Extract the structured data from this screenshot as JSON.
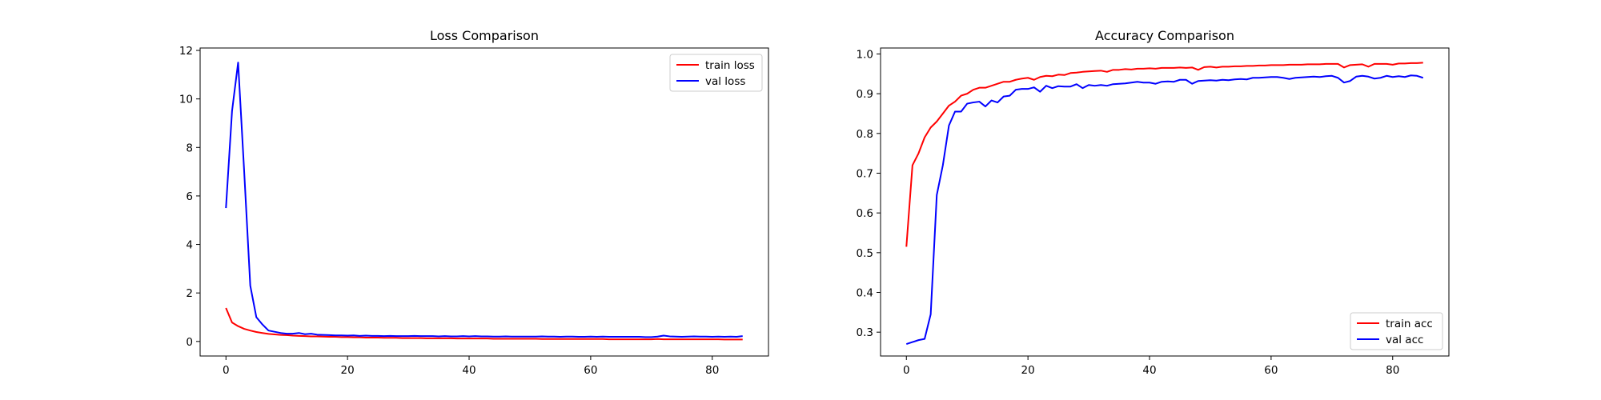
{
  "chart_data": [
    {
      "type": "line",
      "title": "Loss Comparison",
      "xlabel": "",
      "ylabel": "",
      "xlim": [
        -4.25,
        89.25
      ],
      "ylim": [
        -0.6,
        12.1
      ],
      "xticks": [
        0,
        20,
        40,
        60,
        80
      ],
      "yticks": [
        0,
        2,
        4,
        6,
        8,
        10,
        12
      ],
      "grid": false,
      "legend_position": "top-right",
      "series": [
        {
          "name": "train loss",
          "color": "#ff0000",
          "x": [
            0,
            1,
            2,
            3,
            4,
            5,
            6,
            7,
            8,
            9,
            10,
            11,
            12,
            13,
            14,
            15,
            16,
            17,
            18,
            19,
            20,
            21,
            22,
            23,
            24,
            25,
            26,
            27,
            28,
            29,
            30,
            31,
            32,
            33,
            34,
            35,
            36,
            37,
            38,
            39,
            40,
            41,
            42,
            43,
            44,
            45,
            46,
            47,
            48,
            49,
            50,
            51,
            52,
            53,
            54,
            55,
            56,
            57,
            58,
            59,
            60,
            61,
            62,
            63,
            64,
            65,
            66,
            67,
            68,
            69,
            70,
            71,
            72,
            73,
            74,
            75,
            76,
            77,
            78,
            79,
            80,
            81,
            82,
            83,
            84,
            85
          ],
          "y": [
            1.38,
            0.78,
            0.63,
            0.52,
            0.45,
            0.39,
            0.35,
            0.31,
            0.29,
            0.27,
            0.26,
            0.24,
            0.23,
            0.22,
            0.21,
            0.21,
            0.2,
            0.19,
            0.19,
            0.18,
            0.18,
            0.17,
            0.17,
            0.16,
            0.16,
            0.16,
            0.15,
            0.15,
            0.15,
            0.14,
            0.14,
            0.14,
            0.14,
            0.13,
            0.13,
            0.13,
            0.13,
            0.13,
            0.12,
            0.12,
            0.12,
            0.12,
            0.12,
            0.12,
            0.11,
            0.11,
            0.11,
            0.11,
            0.11,
            0.11,
            0.11,
            0.11,
            0.1,
            0.1,
            0.1,
            0.1,
            0.1,
            0.1,
            0.1,
            0.1,
            0.1,
            0.1,
            0.1,
            0.09,
            0.09,
            0.09,
            0.09,
            0.09,
            0.09,
            0.09,
            0.09,
            0.1,
            0.09,
            0.09,
            0.09,
            0.09,
            0.09,
            0.09,
            0.09,
            0.09,
            0.09,
            0.09,
            0.08,
            0.08,
            0.08,
            0.08
          ]
        },
        {
          "name": "val loss",
          "color": "#0000ff",
          "x": [
            0,
            1,
            2,
            3,
            4,
            5,
            6,
            7,
            8,
            9,
            10,
            11,
            12,
            13,
            14,
            15,
            16,
            17,
            18,
            19,
            20,
            21,
            22,
            23,
            24,
            25,
            26,
            27,
            28,
            29,
            30,
            31,
            32,
            33,
            34,
            35,
            36,
            37,
            38,
            39,
            40,
            41,
            42,
            43,
            44,
            45,
            46,
            47,
            48,
            49,
            50,
            51,
            52,
            53,
            54,
            55,
            56,
            57,
            58,
            59,
            60,
            61,
            62,
            63,
            64,
            65,
            66,
            67,
            68,
            69,
            70,
            71,
            72,
            73,
            74,
            75,
            76,
            77,
            78,
            79,
            80,
            81,
            82,
            83,
            84,
            85
          ],
          "y": [
            5.5,
            9.5,
            11.5,
            7.0,
            2.3,
            1.0,
            0.7,
            0.45,
            0.4,
            0.35,
            0.32,
            0.32,
            0.35,
            0.3,
            0.32,
            0.28,
            0.27,
            0.26,
            0.25,
            0.25,
            0.24,
            0.25,
            0.23,
            0.24,
            0.23,
            0.23,
            0.22,
            0.23,
            0.22,
            0.22,
            0.22,
            0.23,
            0.22,
            0.22,
            0.22,
            0.21,
            0.22,
            0.21,
            0.21,
            0.22,
            0.21,
            0.22,
            0.21,
            0.21,
            0.2,
            0.2,
            0.21,
            0.2,
            0.2,
            0.2,
            0.2,
            0.2,
            0.21,
            0.2,
            0.2,
            0.19,
            0.2,
            0.2,
            0.19,
            0.19,
            0.2,
            0.19,
            0.2,
            0.19,
            0.19,
            0.19,
            0.19,
            0.19,
            0.19,
            0.18,
            0.18,
            0.2,
            0.24,
            0.21,
            0.2,
            0.19,
            0.2,
            0.21,
            0.2,
            0.2,
            0.19,
            0.2,
            0.19,
            0.2,
            0.19,
            0.22
          ]
        }
      ]
    },
    {
      "type": "line",
      "title": "Accuracy Comparison",
      "xlabel": "",
      "ylabel": "",
      "xlim": [
        -4.25,
        89.25
      ],
      "ylim": [
        0.24,
        1.015
      ],
      "xticks": [
        0,
        20,
        40,
        60,
        80
      ],
      "yticks": [
        0.3,
        0.4,
        0.5,
        0.6,
        0.7,
        0.8,
        0.9,
        1.0
      ],
      "grid": false,
      "legend_position": "bottom-right",
      "series": [
        {
          "name": "train acc",
          "color": "#ff0000",
          "x": [
            0,
            1,
            2,
            3,
            4,
            5,
            6,
            7,
            8,
            9,
            10,
            11,
            12,
            13,
            14,
            15,
            16,
            17,
            18,
            19,
            20,
            21,
            22,
            23,
            24,
            25,
            26,
            27,
            28,
            29,
            30,
            31,
            32,
            33,
            34,
            35,
            36,
            37,
            38,
            39,
            40,
            41,
            42,
            43,
            44,
            45,
            46,
            47,
            48,
            49,
            50,
            51,
            52,
            53,
            54,
            55,
            56,
            57,
            58,
            59,
            60,
            61,
            62,
            63,
            64,
            65,
            66,
            67,
            68,
            69,
            70,
            71,
            72,
            73,
            74,
            75,
            76,
            77,
            78,
            79,
            80,
            81,
            82,
            83,
            84,
            85
          ],
          "y": [
            0.515,
            0.72,
            0.75,
            0.79,
            0.815,
            0.83,
            0.85,
            0.87,
            0.88,
            0.895,
            0.9,
            0.91,
            0.915,
            0.915,
            0.92,
            0.925,
            0.93,
            0.93,
            0.935,
            0.938,
            0.94,
            0.935,
            0.942,
            0.945,
            0.944,
            0.948,
            0.947,
            0.952,
            0.953,
            0.955,
            0.956,
            0.957,
            0.958,
            0.955,
            0.96,
            0.96,
            0.962,
            0.961,
            0.963,
            0.963,
            0.964,
            0.963,
            0.965,
            0.965,
            0.965,
            0.966,
            0.965,
            0.966,
            0.96,
            0.967,
            0.968,
            0.966,
            0.968,
            0.968,
            0.969,
            0.969,
            0.97,
            0.97,
            0.971,
            0.971,
            0.972,
            0.972,
            0.972,
            0.973,
            0.973,
            0.973,
            0.974,
            0.974,
            0.974,
            0.975,
            0.975,
            0.975,
            0.966,
            0.972,
            0.973,
            0.974,
            0.968,
            0.975,
            0.975,
            0.975,
            0.973,
            0.976,
            0.976,
            0.977,
            0.977,
            0.978
          ]
        },
        {
          "name": "val acc",
          "color": "#0000ff",
          "x": [
            0,
            1,
            2,
            3,
            4,
            5,
            6,
            7,
            8,
            9,
            10,
            11,
            12,
            13,
            14,
            15,
            16,
            17,
            18,
            19,
            20,
            21,
            22,
            23,
            24,
            25,
            26,
            27,
            28,
            29,
            30,
            31,
            32,
            33,
            34,
            35,
            36,
            37,
            38,
            39,
            40,
            41,
            42,
            43,
            44,
            45,
            46,
            47,
            48,
            49,
            50,
            51,
            52,
            53,
            54,
            55,
            56,
            57,
            58,
            59,
            60,
            61,
            62,
            63,
            64,
            65,
            66,
            67,
            68,
            69,
            70,
            71,
            72,
            73,
            74,
            75,
            76,
            77,
            78,
            79,
            80,
            81,
            82,
            83,
            84,
            85
          ],
          "y": [
            0.27,
            0.275,
            0.28,
            0.283,
            0.345,
            0.645,
            0.72,
            0.82,
            0.855,
            0.855,
            0.875,
            0.878,
            0.88,
            0.868,
            0.883,
            0.878,
            0.893,
            0.895,
            0.91,
            0.912,
            0.912,
            0.916,
            0.905,
            0.92,
            0.914,
            0.919,
            0.918,
            0.918,
            0.924,
            0.914,
            0.922,
            0.92,
            0.922,
            0.92,
            0.924,
            0.925,
            0.926,
            0.928,
            0.93,
            0.928,
            0.928,
            0.925,
            0.93,
            0.931,
            0.93,
            0.935,
            0.935,
            0.925,
            0.932,
            0.933,
            0.934,
            0.933,
            0.935,
            0.934,
            0.936,
            0.937,
            0.936,
            0.94,
            0.94,
            0.941,
            0.942,
            0.942,
            0.94,
            0.937,
            0.94,
            0.941,
            0.942,
            0.943,
            0.942,
            0.944,
            0.945,
            0.94,
            0.928,
            0.932,
            0.943,
            0.945,
            0.943,
            0.938,
            0.94,
            0.945,
            0.942,
            0.944,
            0.942,
            0.946,
            0.945,
            0.94
          ]
        }
      ]
    }
  ]
}
